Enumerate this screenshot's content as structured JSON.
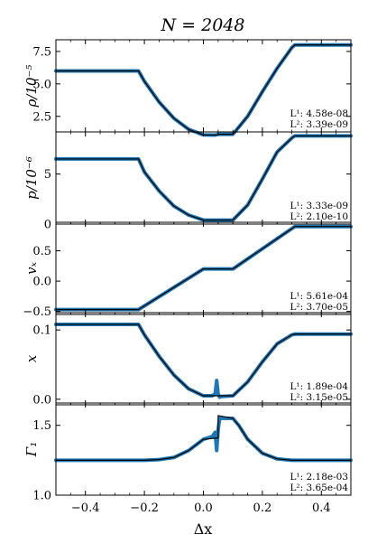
{
  "chart_data": {
    "type": "line",
    "title": "N = 2048",
    "xlabel": "Δx",
    "xlim": [
      -0.5,
      0.5
    ],
    "xticks": [
      -0.4,
      -0.2,
      0.0,
      0.2,
      0.4
    ],
    "xtick_labels": [
      "−0.4",
      "−0.2",
      "0.0",
      "0.2",
      "0.4"
    ],
    "line_colors": {
      "numerical": "#1f77b4",
      "exact": "#000000"
    },
    "panels": [
      {
        "ylabel": "ρ/10⁻⁵",
        "ylim": [
          1.3,
          8.4
        ],
        "yticks": [
          2.5,
          5.0,
          7.5
        ],
        "ytick_labels": [
          "2.5",
          "5.0",
          "7.5"
        ],
        "norms": [
          "L¹: 4.58e-08",
          "L²: 3.39e-09"
        ],
        "x": [
          -0.5,
          -0.22,
          -0.2,
          -0.15,
          -0.1,
          -0.05,
          0.0,
          0.04,
          0.05,
          0.1,
          0.15,
          0.2,
          0.25,
          0.3,
          0.31,
          0.5
        ],
        "y": [
          6.0,
          6.0,
          5.2,
          3.6,
          2.35,
          1.5,
          1.07,
          1.06,
          1.12,
          1.12,
          2.5,
          4.4,
          6.2,
          7.8,
          8.0,
          8.0
        ],
        "exact_x": [
          -0.5,
          -0.22,
          -0.2,
          -0.15,
          -0.1,
          -0.05,
          0.0,
          0.05,
          0.05,
          0.1,
          0.15,
          0.2,
          0.25,
          0.3,
          0.31,
          0.5
        ],
        "exact_y": [
          6.0,
          6.0,
          5.2,
          3.6,
          2.35,
          1.5,
          1.07,
          1.06,
          1.12,
          1.12,
          2.5,
          4.4,
          6.2,
          7.8,
          8.0,
          8.0
        ]
      },
      {
        "ylabel": "p/10⁻⁶",
        "ylim": [
          0.0,
          9.2
        ],
        "yticks": [
          0,
          5
        ],
        "ytick_labels": [
          "0",
          "5"
        ],
        "norms": [
          "L¹: 3.33e-09",
          "L²: 2.10e-10"
        ],
        "x": [
          -0.5,
          -0.22,
          -0.2,
          -0.15,
          -0.1,
          -0.05,
          0.0,
          0.1,
          0.15,
          0.2,
          0.25,
          0.3,
          0.31,
          0.5
        ],
        "y": [
          6.5,
          6.5,
          5.2,
          3.3,
          1.8,
          0.9,
          0.4,
          0.4,
          1.9,
          4.5,
          7.2,
          8.6,
          8.8,
          8.8
        ],
        "exact_x": [
          -0.5,
          -0.22,
          -0.2,
          -0.15,
          -0.1,
          -0.05,
          0.0,
          0.1,
          0.15,
          0.2,
          0.25,
          0.3,
          0.31,
          0.5
        ],
        "exact_y": [
          6.5,
          6.5,
          5.2,
          3.3,
          1.8,
          0.9,
          0.4,
          0.4,
          1.9,
          4.5,
          7.2,
          8.6,
          8.8,
          8.8
        ]
      },
      {
        "ylabel": "vₓ",
        "ylim": [
          -0.55,
          0.97
        ],
        "yticks": [
          -0.5,
          0.0,
          0.5
        ],
        "ytick_labels": [
          "−0.5",
          "0.0",
          "0.5"
        ],
        "norms": [
          "L¹: 5.61e-04",
          "L²: 3.70e-05"
        ],
        "x": [
          -0.5,
          -0.22,
          0.0,
          0.1,
          0.31,
          0.5
        ],
        "y": [
          -0.47,
          -0.47,
          0.2,
          0.2,
          0.9,
          0.9
        ],
        "exact_x": [
          -0.5,
          -0.22,
          0.0,
          0.1,
          0.31,
          0.5
        ],
        "exact_y": [
          -0.47,
          -0.47,
          0.2,
          0.2,
          0.9,
          0.9
        ]
      },
      {
        "ylabel": "x",
        "ylim": [
          -0.008,
          0.125
        ],
        "yticks": [
          0.0,
          0.1
        ],
        "ytick_labels": [
          "0.0",
          "0.1"
        ],
        "norms": [
          "L¹: 1.89e-04",
          "L²: 3.15e-05"
        ],
        "x": [
          -0.5,
          -0.22,
          -0.2,
          -0.15,
          -0.1,
          -0.05,
          0.0,
          0.03,
          0.04,
          0.045,
          0.05,
          0.055,
          0.06,
          0.1,
          0.15,
          0.2,
          0.25,
          0.3,
          0.31,
          0.5
        ],
        "y": [
          0.108,
          0.108,
          0.093,
          0.062,
          0.035,
          0.015,
          0.005,
          0.005,
          0.008,
          0.027,
          0.008,
          0.003,
          0.004,
          0.005,
          0.025,
          0.054,
          0.08,
          0.093,
          0.094,
          0.094
        ],
        "exact_x": [
          -0.5,
          -0.22,
          -0.2,
          -0.15,
          -0.1,
          -0.05,
          0.0,
          0.05,
          0.1,
          0.15,
          0.2,
          0.25,
          0.3,
          0.31,
          0.5
        ],
        "exact_y": [
          0.108,
          0.108,
          0.093,
          0.062,
          0.035,
          0.015,
          0.005,
          0.005,
          0.005,
          0.025,
          0.054,
          0.08,
          0.093,
          0.094,
          0.094
        ]
      },
      {
        "ylabel": "Γ₁",
        "ylim": [
          1.0,
          1.66
        ],
        "yticks": [
          1.0,
          1.5
        ],
        "ytick_labels": [
          "1.0",
          "1.5"
        ],
        "norms": [
          "L¹: 2.18e-03",
          "L²: 3.65e-04"
        ],
        "x": [
          -0.5,
          -0.2,
          -0.15,
          -0.1,
          -0.05,
          0.0,
          0.03,
          0.04,
          0.045,
          0.05,
          0.055,
          0.06,
          0.1,
          0.12,
          0.15,
          0.2,
          0.25,
          0.3,
          0.5
        ],
        "y": [
          1.25,
          1.25,
          1.255,
          1.27,
          1.32,
          1.4,
          1.42,
          1.45,
          1.32,
          1.47,
          1.55,
          1.55,
          1.55,
          1.5,
          1.4,
          1.3,
          1.26,
          1.25,
          1.25
        ],
        "exact_x": [
          -0.5,
          -0.2,
          -0.15,
          -0.1,
          -0.05,
          0.0,
          0.05,
          0.05,
          0.1,
          0.12,
          0.15,
          0.2,
          0.25,
          0.3,
          0.5
        ],
        "exact_y": [
          1.25,
          1.25,
          1.255,
          1.27,
          1.32,
          1.4,
          1.41,
          1.57,
          1.55,
          1.5,
          1.4,
          1.3,
          1.26,
          1.25,
          1.25
        ]
      }
    ]
  }
}
